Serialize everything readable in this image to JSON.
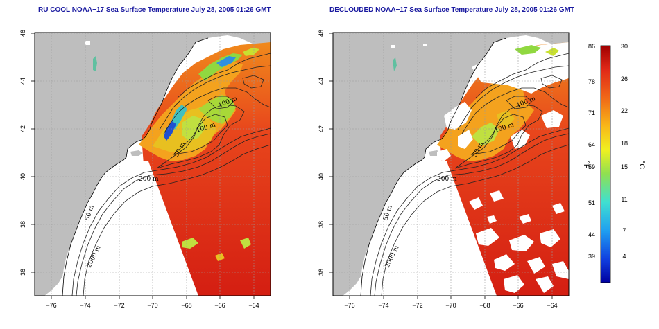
{
  "titles": {
    "left": "RU COOL NOAA−17 Sea Surface Temperature July 28, 2005 01:26 GMT",
    "right": "DECLOUDED NOAA−17 Sea Surface Temperature July 28, 2005 01:26 GMT"
  },
  "axes": {
    "x_ticks": [
      "−76",
      "−74",
      "−72",
      "−70",
      "−68",
      "−66",
      "−64"
    ],
    "y_ticks": [
      "46",
      "44",
      "42",
      "40",
      "38",
      "36"
    ]
  },
  "contour_labels": {
    "c100a": "100 m",
    "c100b": "100 m",
    "c50": "50 m",
    "c200": "200 m",
    "c50w": "50 m",
    "c2000": "2000 m"
  },
  "colorbar": {
    "celsius": [
      "30",
      "26",
      "22",
      "18",
      "15",
      "11",
      "7",
      "4"
    ],
    "fahrenheit": [
      "86",
      "78",
      "71",
      "64",
      "59",
      "51",
      "44",
      "39"
    ],
    "unit_c": "°C",
    "unit_f": "°F"
  },
  "map": {
    "extent_lon": [
      -77,
      -63
    ],
    "extent_lat": [
      35,
      46
    ],
    "colors": {
      "land": "#bebebe",
      "warm_sea": "#e8361c",
      "hot_sea": "#d81c10",
      "mid_sea": "#f08a1c",
      "cool_sea": "#a8d838",
      "cold_sea": "#3090e0",
      "cloud": "#ffffff"
    }
  }
}
